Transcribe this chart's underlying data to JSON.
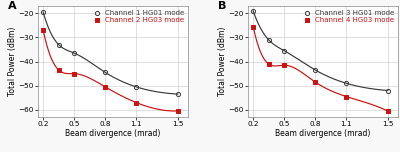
{
  "panel_A": {
    "label": "A",
    "ch1": {
      "label": "Channel 1 HG01 mode",
      "color": "#3a3a3a",
      "marker": "o",
      "x": [
        0.2,
        0.35,
        0.5,
        0.8,
        1.1,
        1.5
      ],
      "y": [
        -19.5,
        -33.0,
        -36.5,
        -44.5,
        -50.5,
        -53.5
      ]
    },
    "ch2": {
      "label": "Channel 2 HG03 mode",
      "color": "#cc1111",
      "marker": "s",
      "x": [
        0.2,
        0.35,
        0.5,
        0.8,
        1.1,
        1.5
      ],
      "y": [
        -27.0,
        -43.5,
        -45.0,
        -50.5,
        -57.0,
        -60.5
      ]
    },
    "xlim": [
      0.15,
      1.6
    ],
    "ylim": [
      -63,
      -17
    ],
    "xticks": [
      0.2,
      0.5,
      0.8,
      1.1,
      1.5
    ],
    "yticks": [
      -20,
      -30,
      -40,
      -50,
      -60
    ],
    "xlabel": "Beam divergence (mrad)",
    "ylabel": "Total Power (dBm)"
  },
  "panel_B": {
    "label": "B",
    "ch3": {
      "label": "Channel 3 HG01 mode",
      "color": "#3a3a3a",
      "marker": "o",
      "x": [
        0.2,
        0.35,
        0.5,
        0.8,
        1.1,
        1.5
      ],
      "y": [
        -19.0,
        -31.0,
        -35.5,
        -43.5,
        -49.0,
        -52.0
      ]
    },
    "ch4": {
      "label": "Channel 4 HG03 mode",
      "color": "#cc1111",
      "marker": "s",
      "x": [
        0.2,
        0.35,
        0.5,
        0.8,
        1.1,
        1.5
      ],
      "y": [
        -25.5,
        -41.0,
        -41.5,
        -48.5,
        -54.5,
        -60.5
      ]
    },
    "xlim": [
      0.15,
      1.6
    ],
    "ylim": [
      -63,
      -17
    ],
    "xticks": [
      0.2,
      0.5,
      0.8,
      1.1,
      1.5
    ],
    "yticks": [
      -20,
      -30,
      -40,
      -50,
      -60
    ],
    "xlabel": "Beam divergence (mrad)",
    "ylabel": "Total Power (dBm)"
  },
  "bg_color": "#f8f8f8",
  "plot_bg_color": "#ffffff",
  "grid_color": "#c8c8c8",
  "legend_fontsize": 5.0,
  "tick_fontsize": 5.2,
  "label_fontsize": 5.5,
  "linewidth": 0.85,
  "markersize": 3.0
}
